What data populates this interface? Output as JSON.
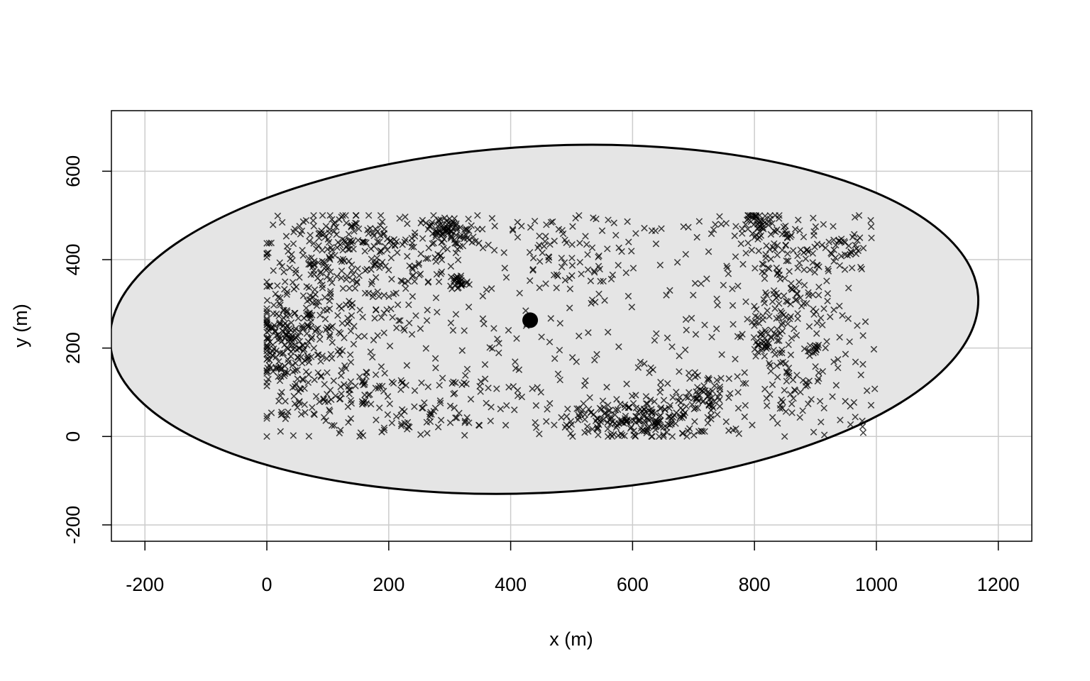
{
  "chart_data": {
    "type": "scatter",
    "title": "",
    "xlabel": "x (m)",
    "ylabel": "y (m)",
    "xlim": [
      -255,
      1255
    ],
    "ylim": [
      -237,
      737
    ],
    "xticks": [
      -200,
      0,
      200,
      400,
      600,
      800,
      1000,
      1200
    ],
    "xtick_labels": [
      "-200",
      "0",
      "200",
      "400",
      "600",
      "800",
      "1000",
      "1200"
    ],
    "yticks": [
      -200,
      0,
      200,
      400,
      600
    ],
    "ytick_labels": [
      "-200",
      "0",
      "200",
      "400",
      "600"
    ],
    "grid": true,
    "marker": "x",
    "center_point": {
      "x": 432,
      "y": 263
    },
    "ellipse": {
      "cx": 455,
      "cy": 265,
      "rx": 713,
      "ry": 392,
      "rotation_deg": -3
    },
    "fill_color": "#e5e5e5",
    "point_color": "#000000",
    "clusters": [
      {
        "x": 30,
        "y": 210,
        "sx": 25,
        "sy": 45,
        "n": 120
      },
      {
        "x": 80,
        "y": 320,
        "sx": 55,
        "sy": 80,
        "n": 150
      },
      {
        "x": 130,
        "y": 440,
        "sx": 60,
        "sy": 35,
        "n": 110
      },
      {
        "x": 60,
        "y": 100,
        "sx": 40,
        "sy": 60,
        "n": 70
      },
      {
        "x": 160,
        "y": 110,
        "sx": 25,
        "sy": 25,
        "n": 40
      },
      {
        "x": 200,
        "y": 350,
        "sx": 30,
        "sy": 60,
        "n": 40
      },
      {
        "x": 295,
        "y": 460,
        "sx": 25,
        "sy": 20,
        "n": 90
      },
      {
        "x": 315,
        "y": 350,
        "sx": 8,
        "sy": 10,
        "n": 30
      },
      {
        "x": 270,
        "y": 400,
        "sx": 35,
        "sy": 40,
        "n": 30
      },
      {
        "x": 220,
        "y": 50,
        "sx": 40,
        "sy": 30,
        "n": 30
      },
      {
        "x": 310,
        "y": 80,
        "sx": 40,
        "sy": 40,
        "n": 35
      },
      {
        "x": 480,
        "y": 400,
        "sx": 50,
        "sy": 50,
        "n": 45
      },
      {
        "x": 580,
        "y": 40,
        "sx": 30,
        "sy": 25,
        "n": 80
      },
      {
        "x": 650,
        "y": 35,
        "sx": 30,
        "sy": 25,
        "n": 80
      },
      {
        "x": 720,
        "y": 90,
        "sx": 25,
        "sy": 25,
        "n": 60
      },
      {
        "x": 520,
        "y": 30,
        "sx": 35,
        "sy": 20,
        "n": 30
      },
      {
        "x": 810,
        "y": 480,
        "sx": 15,
        "sy": 15,
        "n": 40
      },
      {
        "x": 850,
        "y": 400,
        "sx": 40,
        "sy": 60,
        "n": 90
      },
      {
        "x": 860,
        "y": 280,
        "sx": 40,
        "sy": 40,
        "n": 60
      },
      {
        "x": 820,
        "y": 210,
        "sx": 15,
        "sy": 20,
        "n": 40
      },
      {
        "x": 950,
        "y": 420,
        "sx": 25,
        "sy": 30,
        "n": 40
      },
      {
        "x": 860,
        "y": 100,
        "sx": 30,
        "sy": 50,
        "n": 40
      },
      {
        "x": 900,
        "y": 200,
        "sx": 8,
        "sy": 8,
        "n": 15
      }
    ],
    "uniform_regions": [
      {
        "x0": 0,
        "x1": 400,
        "y0": 0,
        "y1": 500,
        "n": 180
      },
      {
        "x0": 400,
        "x1": 800,
        "y0": 0,
        "y1": 500,
        "n": 200
      },
      {
        "x0": 800,
        "x1": 1000,
        "y0": 0,
        "y1": 500,
        "n": 80
      }
    ]
  }
}
